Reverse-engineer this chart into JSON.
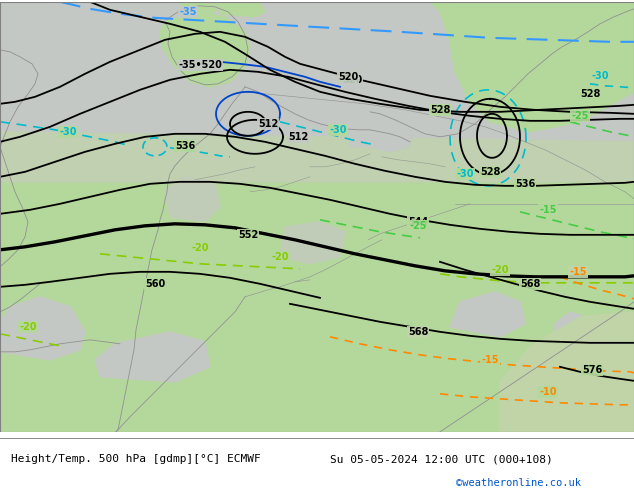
{
  "title_left": "Height/Temp. 500 hPa [gdmp][°C] ECMWF",
  "title_right": "Su 05-05-2024 12:00 UTC (000+108)",
  "title_right2": "©weatheronline.co.uk",
  "figsize": [
    6.34,
    4.9
  ],
  "dpi": 100,
  "map_bg_green": "#b8d8a0",
  "map_bg_gray": "#c8cccc",
  "map_bg_light_gray": "#d0d4d0",
  "land_gray": "#c0c4be",
  "coast_color": "#909090",
  "geo_color": "#000000",
  "geo_lw": 1.3,
  "geo_lw_bold": 2.4,
  "temp_blue_color": "#3399ff",
  "temp_blue2_color": "#0044cc",
  "temp_cyan_color": "#00bbcc",
  "temp_green_color": "#44cc44",
  "temp_green2_color": "#88cc00",
  "temp_orange_color": "#ff8800",
  "temp_lw": 1.2
}
